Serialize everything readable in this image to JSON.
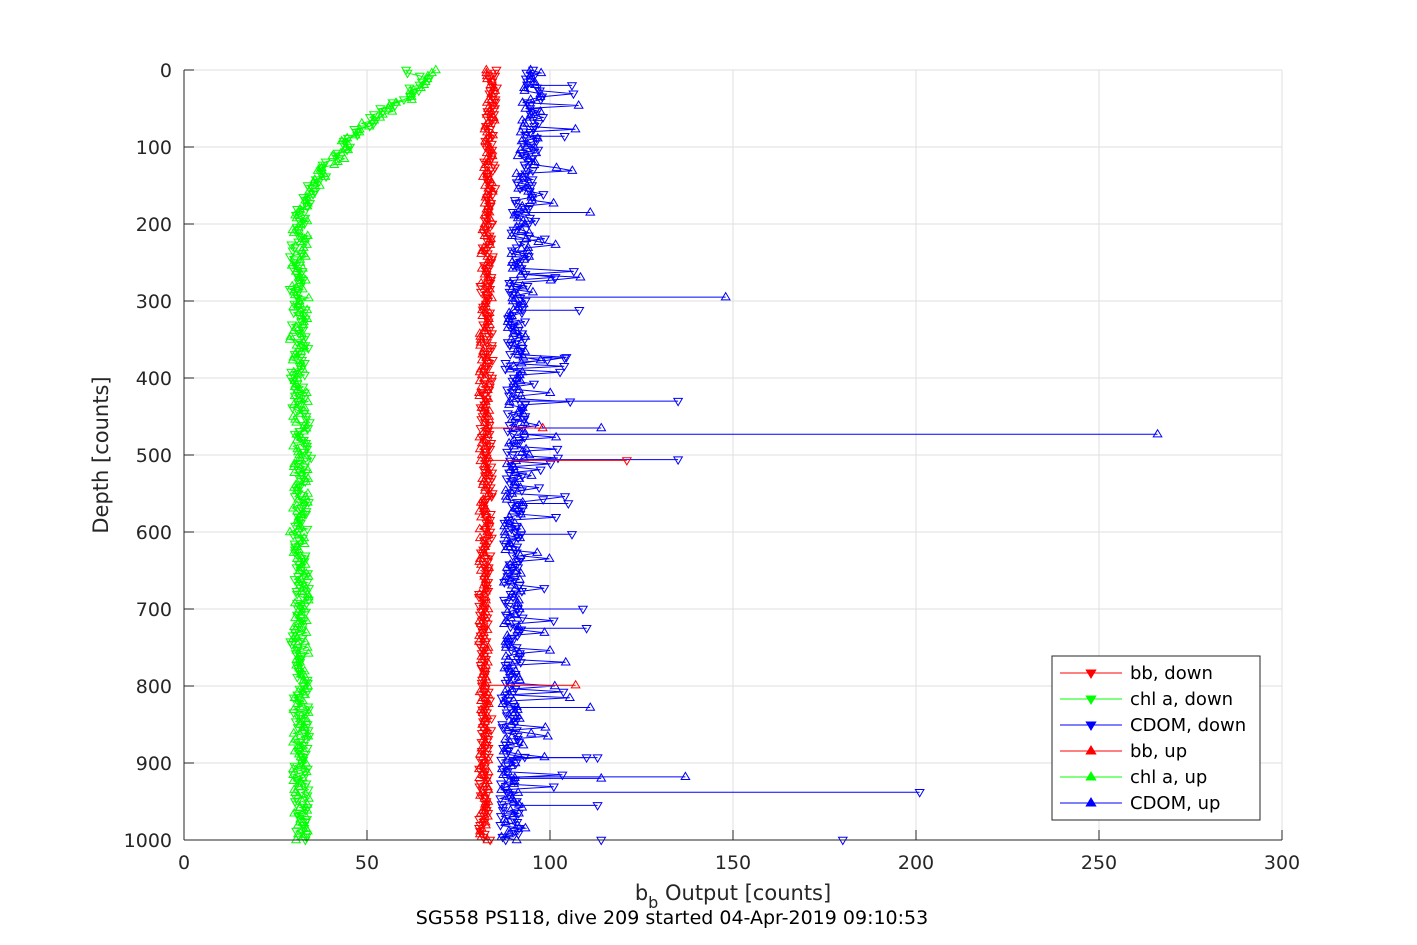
{
  "chart_data": {
    "type": "line",
    "title": "",
    "caption": "SG558 PS118, dive 209 started 04-Apr-2019 09:10:53",
    "xlabel_main": "b",
    "xlabel_sub": "b",
    "xlabel_rest": " Output [counts]",
    "ylabel": "Depth [counts]",
    "xlim": [
      0,
      300
    ],
    "ylim": [
      0,
      1000
    ],
    "y_reversed": true,
    "grid": true,
    "x_ticks": [
      0,
      50,
      100,
      150,
      200,
      250,
      300
    ],
    "y_ticks": [
      0,
      100,
      200,
      300,
      400,
      500,
      600,
      700,
      800,
      900,
      1000
    ],
    "legend_position": "bottom-right",
    "series": [
      {
        "name": "bb, down",
        "color": "#ff0000",
        "marker": "triangle-down",
        "x": [
          85,
          84,
          83,
          84,
          83,
          83,
          82,
          83,
          83,
          82,
          83,
          83,
          83,
          82,
          82,
          82,
          82,
          83,
          82,
          82,
          82,
          83
        ],
        "y": [
          0,
          50,
          100,
          150,
          200,
          250,
          300,
          350,
          400,
          450,
          500,
          550,
          600,
          650,
          700,
          750,
          800,
          850,
          900,
          950,
          990,
          1000
        ]
      },
      {
        "name": "chl a, down",
        "color": "#00ff00",
        "marker": "triangle-down",
        "x": [
          60,
          65,
          62,
          55,
          50,
          45,
          42,
          38,
          35,
          33,
          32,
          31,
          31,
          32,
          31,
          32,
          33,
          32,
          32,
          32,
          32,
          31,
          32,
          32,
          32,
          32
        ],
        "y": [
          0,
          10,
          30,
          50,
          70,
          90,
          110,
          130,
          150,
          170,
          200,
          250,
          300,
          350,
          400,
          450,
          500,
          550,
          600,
          650,
          700,
          750,
          800,
          850,
          900,
          1000
        ]
      },
      {
        "name": "CDOM, down",
        "color": "#0000ff",
        "marker": "triangle-down",
        "x": [
          96,
          96,
          95,
          93,
          92,
          92,
          91,
          91,
          90,
          91,
          90,
          90,
          90,
          90,
          90,
          90,
          89,
          89,
          89,
          89,
          89,
          89
        ],
        "y": [
          0,
          50,
          100,
          150,
          200,
          250,
          300,
          350,
          400,
          450,
          500,
          550,
          600,
          650,
          700,
          750,
          800,
          850,
          900,
          950,
          990,
          1000
        ]
      },
      {
        "name": "bb, up",
        "color": "#ff0000",
        "marker": "triangle-up",
        "x": [
          84,
          84,
          83,
          83,
          83,
          82,
          83,
          82,
          82,
          82,
          82,
          82,
          82,
          82,
          82,
          82,
          82,
          82,
          82,
          82,
          82,
          82
        ],
        "y": [
          0,
          50,
          100,
          150,
          200,
          250,
          300,
          350,
          400,
          450,
          500,
          550,
          600,
          650,
          700,
          750,
          800,
          850,
          900,
          950,
          990,
          1000
        ]
      },
      {
        "name": "chl a, up",
        "color": "#00ff00",
        "marker": "triangle-up",
        "x": [
          70,
          68,
          63,
          57,
          50,
          45,
          43,
          38,
          35,
          33,
          32,
          31,
          32,
          31,
          32,
          32,
          32,
          32,
          31,
          32,
          32,
          32,
          32,
          32,
          32,
          32
        ],
        "y": [
          0,
          10,
          30,
          50,
          70,
          90,
          110,
          130,
          150,
          170,
          200,
          250,
          300,
          350,
          400,
          450,
          500,
          550,
          600,
          650,
          700,
          750,
          800,
          850,
          900,
          1000
        ]
      },
      {
        "name": "CDOM, up",
        "color": "#0000ff",
        "marker": "triangle-up",
        "x": [
          95,
          95,
          94,
          93,
          92,
          92,
          91,
          91,
          90,
          91,
          91,
          90,
          90,
          90,
          90,
          90,
          90,
          89,
          89,
          89,
          89,
          89
        ],
        "y": [
          0,
          50,
          100,
          150,
          200,
          250,
          300,
          350,
          400,
          450,
          500,
          550,
          600,
          650,
          700,
          750,
          800,
          850,
          900,
          950,
          990,
          1000
        ]
      }
    ],
    "spikes": [
      {
        "series": "CDOM, up",
        "x": 148,
        "y": 295
      },
      {
        "series": "CDOM, up",
        "x": 266,
        "y": 473
      },
      {
        "series": "CDOM, down",
        "x": 135,
        "y": 430
      },
      {
        "series": "CDOM, down",
        "x": 135,
        "y": 506
      },
      {
        "series": "CDOM, down",
        "x": 201,
        "y": 938
      },
      {
        "series": "CDOM, down",
        "x": 180,
        "y": 1000
      },
      {
        "series": "CDOM, up",
        "x": 137,
        "y": 918
      },
      {
        "series": "CDOM, up",
        "x": 111,
        "y": 185
      },
      {
        "series": "CDOM, down",
        "x": 108,
        "y": 312
      },
      {
        "series": "CDOM, down",
        "x": 104,
        "y": 374
      },
      {
        "series": "CDOM, up",
        "x": 114,
        "y": 465
      },
      {
        "series": "CDOM, down",
        "x": 109,
        "y": 700
      },
      {
        "series": "CDOM, down",
        "x": 110,
        "y": 725
      },
      {
        "series": "CDOM, up",
        "x": 111,
        "y": 828
      },
      {
        "series": "CDOM, down",
        "x": 113,
        "y": 893
      },
      {
        "series": "CDOM, down",
        "x": 110,
        "y": 893
      },
      {
        "series": "CDOM, up",
        "x": 114,
        "y": 920
      },
      {
        "series": "CDOM, down",
        "x": 113,
        "y": 955
      },
      {
        "series": "CDOM, down",
        "x": 114,
        "y": 1000
      },
      {
        "series": "CDOM, down",
        "x": 106,
        "y": 20
      },
      {
        "series": "CDOM, down",
        "x": 104,
        "y": 86
      },
      {
        "series": "CDOM, down",
        "x": 105,
        "y": 563
      },
      {
        "series": "CDOM, down",
        "x": 106,
        "y": 603
      },
      {
        "series": "bb, down",
        "x": 121,
        "y": 507
      },
      {
        "series": "bb, up",
        "x": 107,
        "y": 799
      },
      {
        "series": "bb, up",
        "x": 98,
        "y": 465
      }
    ]
  }
}
